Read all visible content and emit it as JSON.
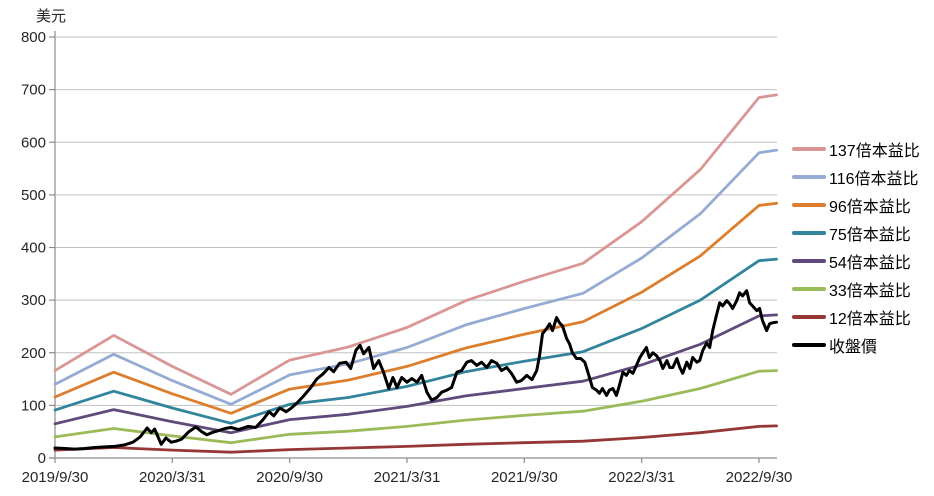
{
  "chart": {
    "grid_color": "#C2C2C2",
    "axis_color": "#8C8C8C",
    "text_color": "#262626",
    "background": "#FFFFFF"
  },
  "chart_data": {
    "type": "line",
    "title": "",
    "y_axis_title": "美元",
    "ylim": [
      0,
      800
    ],
    "y_ticks": [
      0,
      100,
      200,
      300,
      400,
      500,
      600,
      700,
      800
    ],
    "x_tick_labels": [
      "2019/9/30",
      "2020/3/31",
      "2020/9/30",
      "2021/3/31",
      "2021/9/30",
      "2022/3/31",
      "2022/9/30"
    ],
    "x_tick_quarters": [
      0,
      2,
      4,
      6,
      8,
      10,
      12
    ],
    "quarter_dates": [
      "2019/9/30",
      "2019/12/31",
      "2020/3/31",
      "2020/6/30",
      "2020/9/30",
      "2020/12/31",
      "2021/3/31",
      "2021/6/30",
      "2021/9/30",
      "2021/12/31",
      "2022/3/31",
      "2022/6/30",
      "2022/9/30"
    ],
    "x_quarters": [
      0,
      1,
      2,
      3,
      4,
      5,
      6,
      7,
      8,
      9,
      10,
      11,
      12,
      12.3
    ],
    "grid": true,
    "legend_position": "right",
    "series": [
      {
        "name": "137倍本益比",
        "multiple": 137,
        "color": "#D99694",
        "values": [
          166,
          233,
          174,
          121,
          186,
          211,
          248,
          299,
          336,
          370,
          449,
          548,
          685,
          690
        ]
      },
      {
        "name": "116倍本益比",
        "multiple": 116,
        "color": "#95ABD3",
        "values": [
          140,
          197,
          147,
          102,
          158,
          179,
          210,
          253,
          284,
          313,
          380,
          464,
          580,
          585
        ]
      },
      {
        "name": "96倍本益比",
        "multiple": 96,
        "color": "#DD7E2C",
        "values": [
          116,
          163,
          122,
          85,
          131,
          148,
          174,
          209,
          235,
          259,
          315,
          384,
          480,
          484
        ]
      },
      {
        "name": "75倍本益比",
        "multiple": 75,
        "color": "#31849B",
        "values": [
          91,
          127,
          95,
          66,
          102,
          115,
          136,
          164,
          184,
          202,
          246,
          300,
          375,
          378
        ]
      },
      {
        "name": "54倍本益比",
        "multiple": 54,
        "color": "#604A7B",
        "values": [
          65,
          92,
          69,
          48,
          73,
          83,
          98,
          118,
          132,
          146,
          177,
          216,
          270,
          272
        ]
      },
      {
        "name": "33倍本益比",
        "multiple": 33,
        "color": "#9BBB59",
        "values": [
          40,
          56,
          42,
          29,
          45,
          51,
          60,
          72,
          81,
          89,
          108,
          132,
          165,
          166
        ]
      },
      {
        "name": "12倍本益比",
        "multiple": 12,
        "color": "#953735",
        "values": [
          15,
          20,
          15,
          11,
          16,
          19,
          22,
          26,
          29,
          32,
          39,
          48,
          60,
          61
        ]
      }
    ],
    "close_series": {
      "name": "收盤價",
      "color": "#000000",
      "points": [
        [
          0,
          19
        ],
        [
          0.17,
          18
        ],
        [
          0.34,
          17
        ],
        [
          0.51,
          18
        ],
        [
          0.68,
          20
        ],
        [
          0.85,
          21
        ],
        [
          1.02,
          22
        ],
        [
          1.19,
          25
        ],
        [
          1.33,
          30
        ],
        [
          1.45,
          40
        ],
        [
          1.57,
          57
        ],
        [
          1.64,
          48
        ],
        [
          1.7,
          55
        ],
        [
          1.81,
          26
        ],
        [
          1.89,
          38
        ],
        [
          1.98,
          30
        ],
        [
          2.06,
          32
        ],
        [
          2.16,
          36
        ],
        [
          2.28,
          50
        ],
        [
          2.4,
          59
        ],
        [
          2.5,
          50
        ],
        [
          2.59,
          44
        ],
        [
          2.67,
          48
        ],
        [
          2.79,
          52
        ],
        [
          2.9,
          56
        ],
        [
          3,
          58
        ],
        [
          3.13,
          54
        ],
        [
          3.29,
          60
        ],
        [
          3.42,
          58
        ],
        [
          3.54,
          72
        ],
        [
          3.65,
          88
        ],
        [
          3.73,
          80
        ],
        [
          3.83,
          95
        ],
        [
          3.94,
          88
        ],
        [
          4.02,
          94
        ],
        [
          4.12,
          104
        ],
        [
          4.24,
          118
        ],
        [
          4.36,
          134
        ],
        [
          4.46,
          150
        ],
        [
          4.57,
          160
        ],
        [
          4.67,
          172
        ],
        [
          4.75,
          164
        ],
        [
          4.85,
          180
        ],
        [
          4.96,
          182
        ],
        [
          5.04,
          170
        ],
        [
          5.13,
          205
        ],
        [
          5.2,
          214
        ],
        [
          5.26,
          198
        ],
        [
          5.35,
          210
        ],
        [
          5.43,
          170
        ],
        [
          5.52,
          185
        ],
        [
          5.6,
          163
        ],
        [
          5.69,
          132
        ],
        [
          5.76,
          153
        ],
        [
          5.83,
          134
        ],
        [
          5.91,
          153
        ],
        [
          6,
          144
        ],
        [
          6.08,
          151
        ],
        [
          6.17,
          144
        ],
        [
          6.25,
          157
        ],
        [
          6.34,
          125
        ],
        [
          6.42,
          110
        ],
        [
          6.51,
          115
        ],
        [
          6.59,
          125
        ],
        [
          6.68,
          129
        ],
        [
          6.76,
          134
        ],
        [
          6.85,
          163
        ],
        [
          6.93,
          166
        ],
        [
          7.02,
          182
        ],
        [
          7.1,
          185
        ],
        [
          7.19,
          176
        ],
        [
          7.27,
          182
        ],
        [
          7.36,
          172
        ],
        [
          7.44,
          185
        ],
        [
          7.53,
          180
        ],
        [
          7.61,
          166
        ],
        [
          7.7,
          172
        ],
        [
          7.78,
          161
        ],
        [
          7.87,
          144
        ],
        [
          7.95,
          147
        ],
        [
          8.04,
          157
        ],
        [
          8.13,
          149
        ],
        [
          8.21,
          166
        ],
        [
          8.26,
          195
        ],
        [
          8.31,
          236
        ],
        [
          8.38,
          246
        ],
        [
          8.43,
          255
        ],
        [
          8.48,
          242
        ],
        [
          8.55,
          267
        ],
        [
          8.6,
          257
        ],
        [
          8.65,
          251
        ],
        [
          8.72,
          227
        ],
        [
          8.77,
          217
        ],
        [
          8.82,
          200
        ],
        [
          8.89,
          189
        ],
        [
          8.96,
          189
        ],
        [
          9.03,
          182
        ],
        [
          9.11,
          153
        ],
        [
          9.16,
          134
        ],
        [
          9.23,
          129
        ],
        [
          9.28,
          123
        ],
        [
          9.33,
          132
        ],
        [
          9.4,
          119
        ],
        [
          9.45,
          129
        ],
        [
          9.51,
          132
        ],
        [
          9.57,
          119
        ],
        [
          9.62,
          138
        ],
        [
          9.68,
          163
        ],
        [
          9.74,
          157
        ],
        [
          9.79,
          166
        ],
        [
          9.85,
          161
        ],
        [
          9.91,
          176
        ],
        [
          9.97,
          191
        ],
        [
          10.02,
          200
        ],
        [
          10.08,
          210
        ],
        [
          10.13,
          191
        ],
        [
          10.19,
          200
        ],
        [
          10.25,
          195
        ],
        [
          10.31,
          185
        ],
        [
          10.36,
          170
        ],
        [
          10.43,
          185
        ],
        [
          10.48,
          172
        ],
        [
          10.53,
          172
        ],
        [
          10.6,
          189
        ],
        [
          10.65,
          172
        ],
        [
          10.7,
          161
        ],
        [
          10.77,
          182
        ],
        [
          10.82,
          170
        ],
        [
          10.87,
          191
        ],
        [
          10.94,
          182
        ],
        [
          10.99,
          185
        ],
        [
          11.04,
          204
        ],
        [
          11.11,
          219
        ],
        [
          11.16,
          210
        ],
        [
          11.21,
          242
        ],
        [
          11.28,
          274
        ],
        [
          11.33,
          295
        ],
        [
          11.38,
          289
        ],
        [
          11.45,
          299
        ],
        [
          11.5,
          293
        ],
        [
          11.55,
          284
        ],
        [
          11.62,
          299
        ],
        [
          11.67,
          314
        ],
        [
          11.72,
          308
        ],
        [
          11.79,
          318
        ],
        [
          11.84,
          295
        ],
        [
          11.89,
          289
        ],
        [
          11.96,
          280
        ],
        [
          12.01,
          284
        ],
        [
          12.06,
          261
        ],
        [
          12.13,
          242
        ],
        [
          12.18,
          255
        ],
        [
          12.23,
          257
        ],
        [
          12.3,
          258
        ]
      ]
    }
  },
  "legend": {
    "items": [
      {
        "label": "137倍本益比",
        "color": "#D99694"
      },
      {
        "label": "116倍本益比",
        "color": "#95ABD3"
      },
      {
        "label": "96倍本益比",
        "color": "#DD7E2C"
      },
      {
        "label": "75倍本益比",
        "color": "#31849B"
      },
      {
        "label": "54倍本益比",
        "color": "#604A7B"
      },
      {
        "label": "33倍本益比",
        "color": "#9BBB59"
      },
      {
        "label": "12倍本益比",
        "color": "#953735"
      },
      {
        "label": "收盤價",
        "color": "#000000"
      }
    ]
  }
}
